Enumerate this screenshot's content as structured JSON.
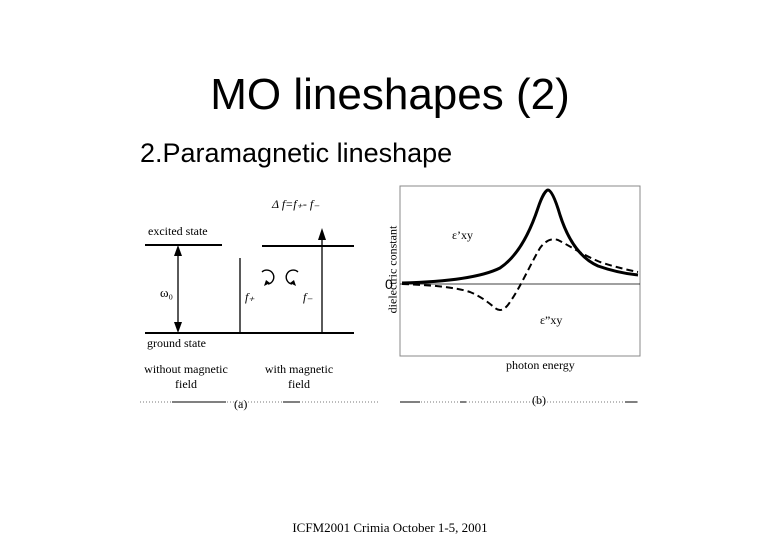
{
  "slide": {
    "title": "MO lineshapes (2)",
    "subtitle": "2.Paramagnetic lineshape",
    "footer": "ICFM2001 Crimia October 1-5, 2001"
  },
  "panel_a": {
    "delta_label": "Δ f=f₊- f₋",
    "excited_state": "excited state",
    "ground_state": "ground state",
    "omega_label": "ω₀",
    "f_plus": "f₊",
    "f_minus": "f₋",
    "without_field": [
      "without magnetic",
      "field"
    ],
    "with_field": [
      "with magnetic",
      "field"
    ],
    "caption": "(a)"
  },
  "panel_b": {
    "ylabel": "dielectric constant",
    "zero_label": "0",
    "eps_prime": "ε’xy",
    "eps_double_prime": "ε”xy",
    "xlabel": "photon energy",
    "caption": "(b)"
  }
}
